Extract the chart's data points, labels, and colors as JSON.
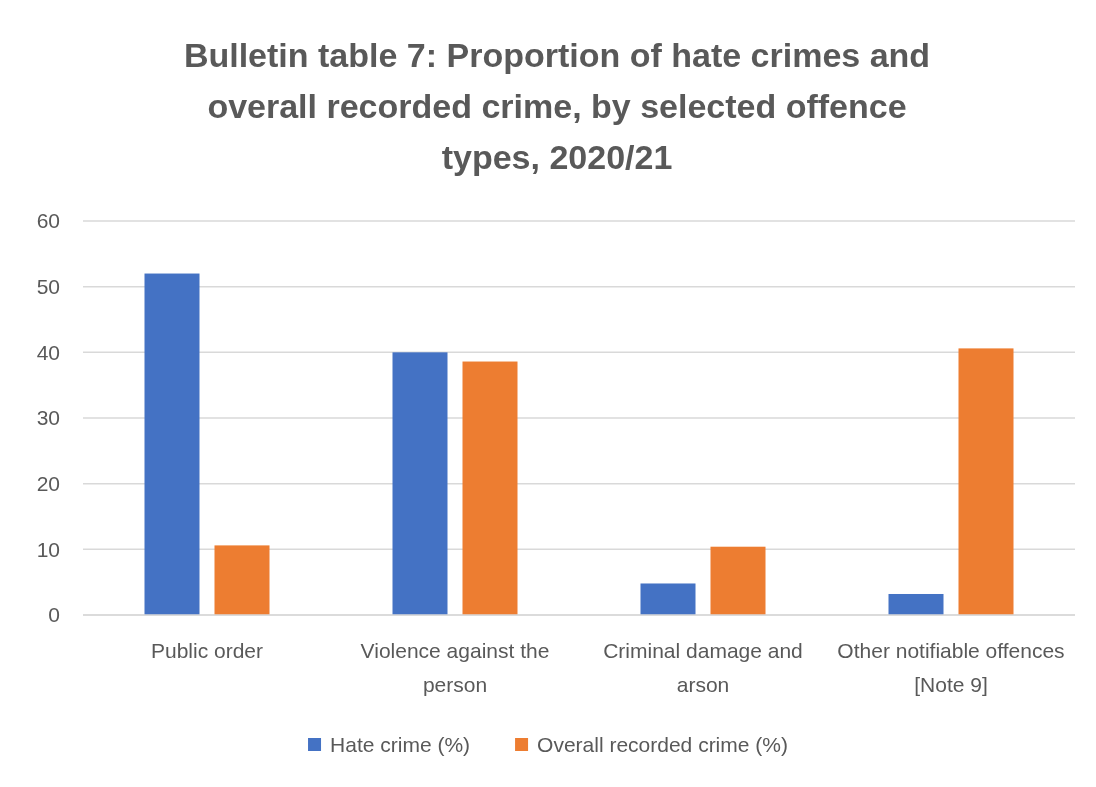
{
  "chart_data": {
    "type": "bar",
    "title": "Bulletin table 7: Proportion of hate crimes and overall recorded crime, by selected offence types, 2020/21",
    "categories": [
      "Public order",
      "Violence against the person",
      "Criminal damage and arson",
      "Other notifiable offences [Note 9]"
    ],
    "series": [
      {
        "name": "Hate crime (%)",
        "color": "#4472c4",
        "values": [
          52.0,
          40.0,
          4.8,
          3.2
        ]
      },
      {
        "name": "Overall recorded crime (%)",
        "color": "#ed7d31",
        "values": [
          10.6,
          38.6,
          10.4,
          40.6
        ]
      }
    ],
    "ylim": [
      0,
      60
    ],
    "yticks": [
      0,
      10,
      20,
      30,
      40,
      50,
      60
    ],
    "grid": "y",
    "legend": "bottom"
  }
}
